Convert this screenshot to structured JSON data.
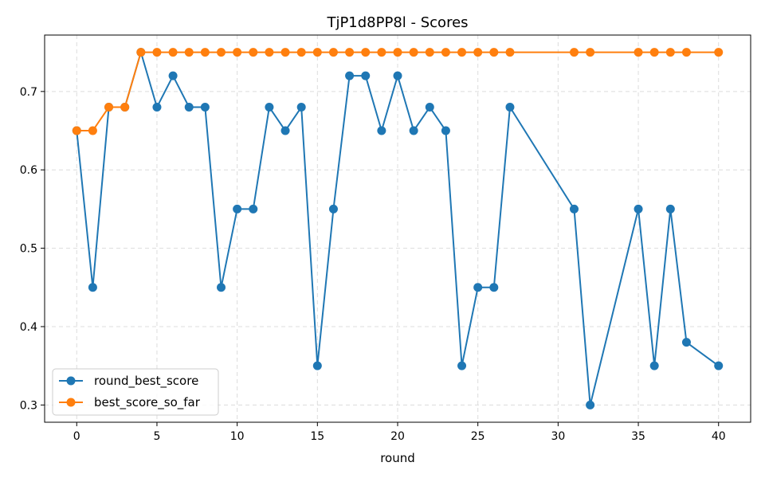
{
  "chart_data": {
    "type": "line",
    "title": "TjP1d8PP8l - Scores",
    "xlabel": "round",
    "ylabel": "",
    "xlim": [
      -2,
      42
    ],
    "ylim": [
      0.278,
      0.772
    ],
    "xticks": [
      0,
      5,
      10,
      15,
      20,
      25,
      30,
      35,
      40
    ],
    "yticks": [
      0.3,
      0.4,
      0.5,
      0.6,
      0.7
    ],
    "grid": true,
    "legend_position": "lower-left",
    "series": [
      {
        "name": "round_best_score",
        "color": "#1f77b4",
        "x": [
          0,
          1,
          2,
          3,
          4,
          5,
          6,
          7,
          8,
          9,
          10,
          11,
          12,
          13,
          14,
          15,
          16,
          17,
          18,
          19,
          20,
          21,
          22,
          23,
          24,
          25,
          26,
          27,
          31,
          32,
          35,
          36,
          37,
          38,
          40
        ],
        "y": [
          0.65,
          0.45,
          0.68,
          0.68,
          0.75,
          0.68,
          0.72,
          0.68,
          0.68,
          0.45,
          0.55,
          0.55,
          0.68,
          0.65,
          0.68,
          0.35,
          0.55,
          0.72,
          0.72,
          0.65,
          0.72,
          0.65,
          0.68,
          0.65,
          0.35,
          0.45,
          0.45,
          0.68,
          0.55,
          0.3,
          0.55,
          0.35,
          0.55,
          0.38,
          0.35
        ]
      },
      {
        "name": "best_score_so_far",
        "color": "#ff7f0e",
        "x": [
          0,
          1,
          2,
          3,
          4,
          5,
          6,
          7,
          8,
          9,
          10,
          11,
          12,
          13,
          14,
          15,
          16,
          17,
          18,
          19,
          20,
          21,
          22,
          23,
          24,
          25,
          26,
          27,
          31,
          32,
          35,
          36,
          37,
          38,
          40
        ],
        "y": [
          0.65,
          0.65,
          0.68,
          0.68,
          0.75,
          0.75,
          0.75,
          0.75,
          0.75,
          0.75,
          0.75,
          0.75,
          0.75,
          0.75,
          0.75,
          0.75,
          0.75,
          0.75,
          0.75,
          0.75,
          0.75,
          0.75,
          0.75,
          0.75,
          0.75,
          0.75,
          0.75,
          0.75,
          0.75,
          0.75,
          0.75,
          0.75,
          0.75,
          0.75,
          0.75
        ]
      }
    ]
  }
}
